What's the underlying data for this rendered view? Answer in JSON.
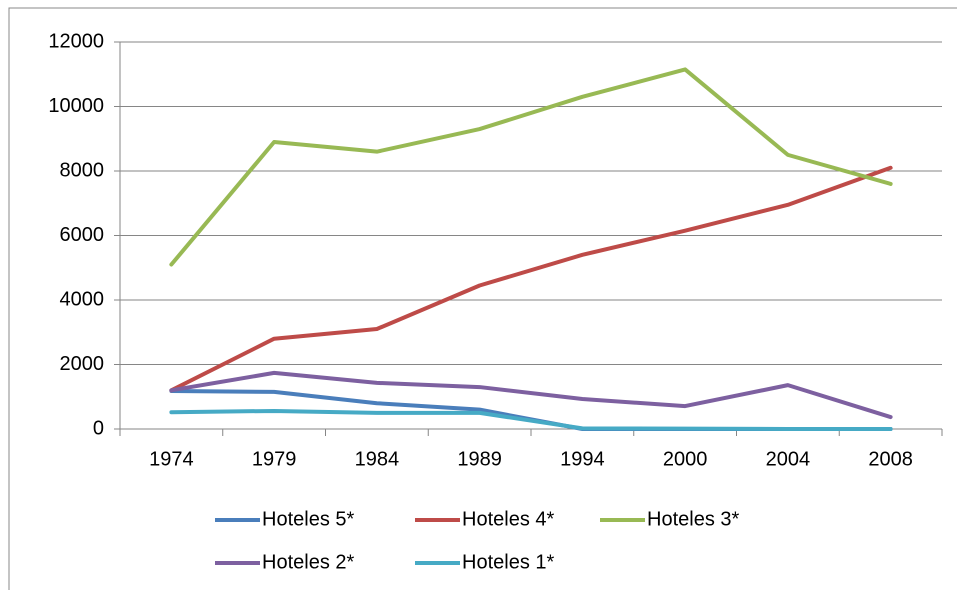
{
  "chart_data": {
    "type": "line",
    "categories": [
      "1974",
      "1979",
      "1984",
      "1989",
      "1994",
      "2000",
      "2004",
      "2008"
    ],
    "series": [
      {
        "name": "Hoteles 5*",
        "color": "#4a7ebb",
        "values": [
          1180,
          1150,
          800,
          600,
          0,
          0,
          0,
          0
        ]
      },
      {
        "name": "Hoteles 4*",
        "color": "#be4b48",
        "values": [
          1200,
          2800,
          3100,
          4450,
          5400,
          6150,
          6950,
          8100
        ]
      },
      {
        "name": "Hoteles 3*",
        "color": "#98b954",
        "values": [
          5100,
          8900,
          8600,
          9300,
          10300,
          11150,
          8500,
          7600
        ]
      },
      {
        "name": "Hoteles 2*",
        "color": "#7d60a0",
        "values": [
          1200,
          1740,
          1430,
          1300,
          930,
          710,
          1360,
          370
        ]
      },
      {
        "name": "Hoteles 1*",
        "color": "#46aac5",
        "values": [
          520,
          560,
          500,
          500,
          20,
          10,
          0,
          0
        ]
      }
    ],
    "ylim": [
      0,
      12000
    ],
    "yticks": [
      0,
      2000,
      4000,
      6000,
      8000,
      10000,
      12000
    ],
    "grid": true,
    "legend": "bottom"
  }
}
